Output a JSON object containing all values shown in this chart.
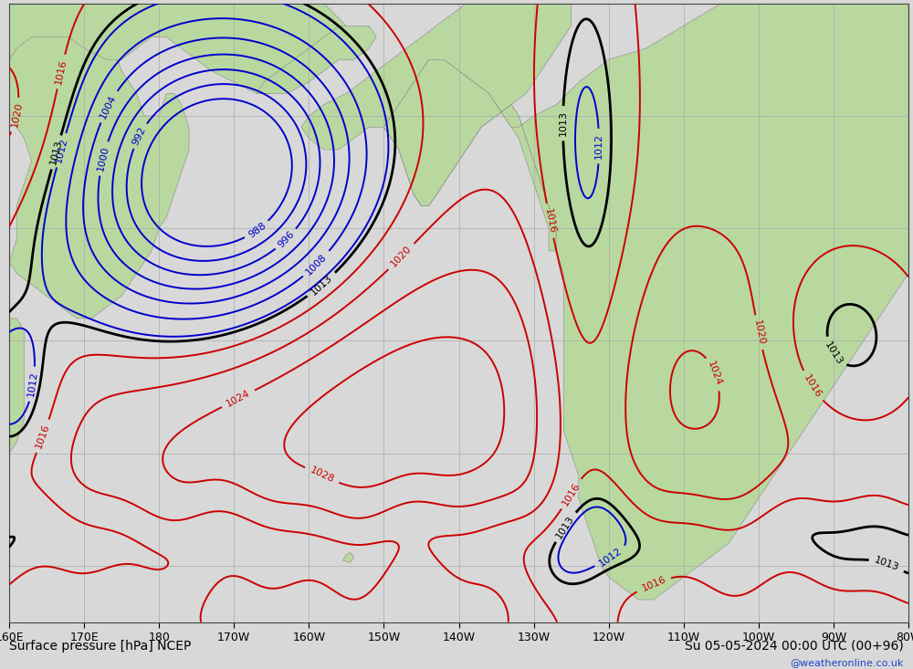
{
  "title_bottom_left": "Surface pressure [hPa] NCEP",
  "title_bottom_right": "Su 05-05-2024 00:00 UTC (00+96)",
  "watermark": "@weatheronline.co.uk",
  "background_ocean": "#d8d8d8",
  "background_land": "#b8d8a0",
  "grid_color": "#aaaaaa",
  "contour_color_low": "#0000cc",
  "contour_color_high": "#cc0000",
  "contour_color_1013": "#000000",
  "xlim": [
    160,
    280
  ],
  "ylim": [
    15,
    70
  ],
  "lon_ticks": [
    160,
    170,
    180,
    190,
    200,
    210,
    220,
    230,
    240,
    250,
    260,
    270,
    280
  ],
  "lon_labels": [
    "160E",
    "170E",
    "180",
    "170W",
    "160W",
    "150W",
    "140W",
    "130W",
    "120W",
    "110W",
    "100W",
    "90W",
    "80W"
  ],
  "contour_levels_low": [
    988,
    992,
    996,
    1000,
    1004,
    1008,
    1012
  ],
  "contour_levels_high": [
    1016,
    1020,
    1024,
    1028
  ],
  "contour_level_1013": [
    1013
  ],
  "fontsize_tick": 9,
  "fontsize_title": 10,
  "fontsize_clabel": 8
}
